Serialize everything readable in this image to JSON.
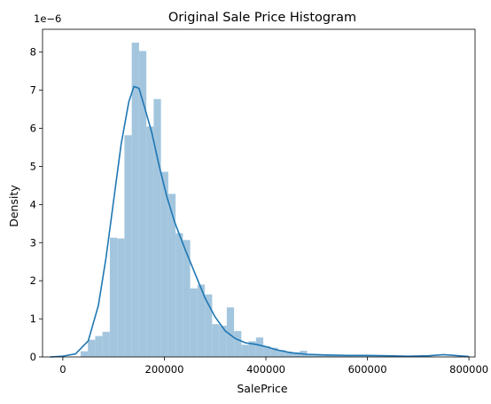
{
  "chart_data": {
    "type": "bar",
    "title": "Original Sale Price Histogram",
    "xlabel": "SalePrice",
    "ylabel": "Density",
    "y_offset_text": "1e−6",
    "y_scale_factor": 1e-06,
    "xlim": [
      -40000,
      812000
    ],
    "ylim": [
      0,
      8.6e-06
    ],
    "x_ticks": [
      0,
      200000,
      400000,
      600000,
      800000
    ],
    "x_tick_labels": [
      "0",
      "200000",
      "400000",
      "600000",
      "800000"
    ],
    "y_ticks": [
      0,
      1e-06,
      2e-06,
      3e-06,
      4e-06,
      5e-06,
      6e-06,
      7e-06,
      8e-06
    ],
    "y_tick_labels": [
      "0",
      "1",
      "2",
      "3",
      "4",
      "5",
      "6",
      "7",
      "8"
    ],
    "bin_start": 34900,
    "bin_width": 14400,
    "values": [
      1.5e-07,
      4.5e-07,
      5.5e-07,
      6.6e-07,
      3.13e-06,
      3.11e-06,
      5.82e-06,
      8.25e-06,
      8.03e-06,
      6.05e-06,
      6.77e-06,
      4.86e-06,
      4.28e-06,
      3.25e-06,
      3.07e-06,
      1.8e-06,
      1.9e-06,
      1.64e-06,
      8.6e-07,
      8.2e-07,
      1.3e-06,
      6.8e-07,
      3.2e-07,
      4.1e-07,
      5.1e-07,
      2.8e-07,
      2.4e-07,
      1.8e-07,
      1.4e-07,
      1.2e-07,
      1.6e-07,
      6e-08,
      5e-08,
      4e-08,
      4e-08,
      3e-08,
      5e-08,
      2e-08,
      2e-08,
      3e-08,
      2e-08,
      1e-08,
      1e-08,
      2e-08,
      1e-08,
      1e-08,
      1e-08,
      2e-08,
      0,
      0,
      0
    ],
    "kde": {
      "x": [
        -25000,
        0,
        25000,
        50000,
        70000,
        85000,
        100000,
        115000,
        130000,
        140000,
        150000,
        160000,
        175000,
        190000,
        205000,
        220000,
        240000,
        260000,
        280000,
        300000,
        320000,
        340000,
        360000,
        380000,
        400000,
        420000,
        450000,
        480000,
        520000,
        560000,
        600000,
        640000,
        680000,
        720000,
        750000,
        780000,
        800000
      ],
      "y": [
        0,
        2e-08,
        8e-08,
        4.2e-07,
        1.35e-06,
        2.6e-06,
        4.1e-06,
        5.6e-06,
        6.7e-06,
        7.1e-06,
        7.05e-06,
        6.6e-06,
        5.9e-06,
        5e-06,
        4.2e-06,
        3.55e-06,
        2.85e-06,
        2.2e-06,
        1.55e-06,
        1.05e-06,
        6.8e-07,
        4.8e-07,
        3.7e-07,
        3.3e-07,
        2.7e-07,
        1.9e-07,
        1.1e-07,
        7e-08,
        5e-08,
        4e-08,
        4e-08,
        3e-08,
        2e-08,
        3e-08,
        6e-08,
        3e-08,
        1e-08
      ]
    },
    "colors": {
      "bar": "#a3c6de",
      "kde": "#1f77b4"
    },
    "legend": "none",
    "grid": false
  }
}
